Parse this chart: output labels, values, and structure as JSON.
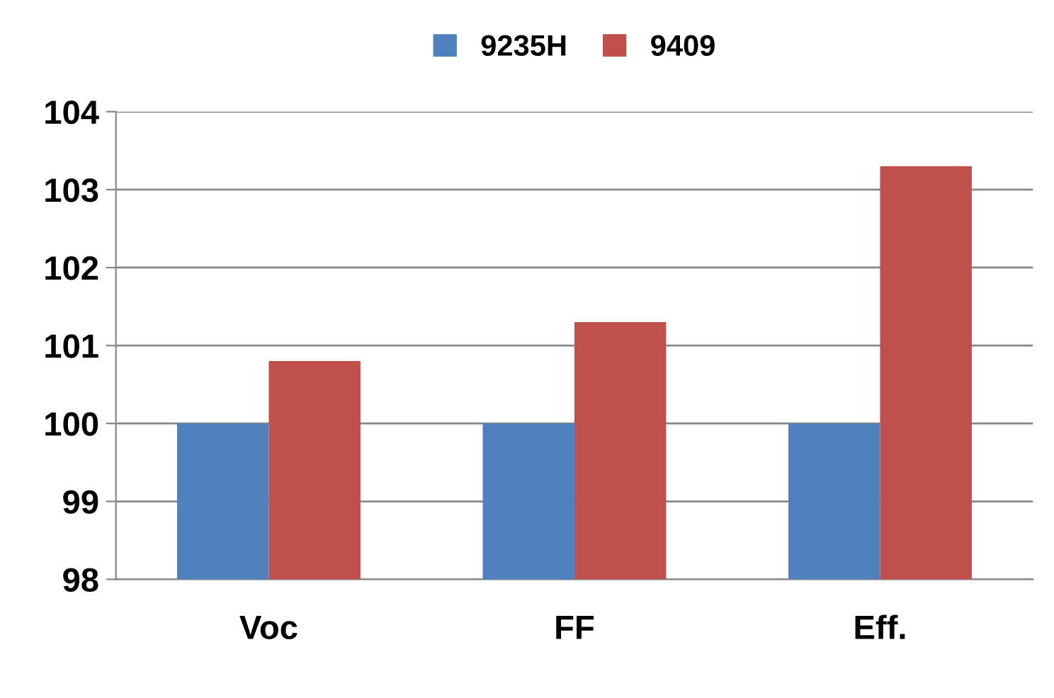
{
  "chart_data": {
    "type": "bar",
    "categories": [
      "Voc",
      "FF",
      "Eff."
    ],
    "series": [
      {
        "name": "9235H",
        "color": "#4f81bd",
        "values": [
          100,
          100,
          100
        ]
      },
      {
        "name": "9409",
        "color": "#c0504d",
        "values": [
          100.8,
          101.3,
          103.3
        ]
      }
    ],
    "ylim": [
      98,
      104
    ],
    "yticks": [
      98,
      99,
      100,
      101,
      102,
      103,
      104
    ],
    "grid": "y",
    "legend": "top"
  }
}
